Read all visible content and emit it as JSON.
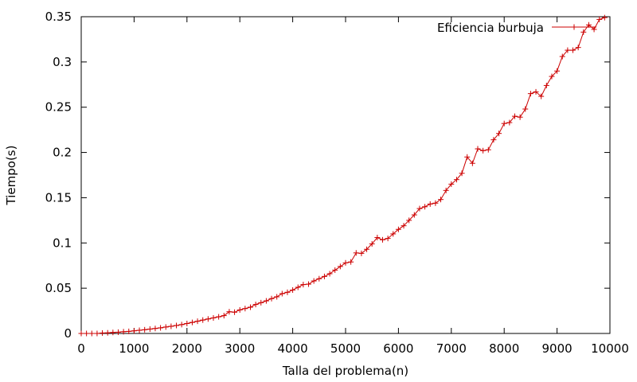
{
  "chart_data": {
    "type": "line",
    "title": "",
    "xlabel": "Talla del problema(n)",
    "ylabel": "Tiempo(s)",
    "xlim": [
      0,
      10000
    ],
    "ylim": [
      0,
      0.35
    ],
    "x_ticks": [
      0,
      1000,
      2000,
      3000,
      4000,
      5000,
      6000,
      7000,
      8000,
      9000,
      10000
    ],
    "y_ticks": [
      0,
      0.05,
      0.1,
      0.15,
      0.2,
      0.25,
      0.3,
      0.35
    ],
    "x_tick_labels": [
      "0",
      "1000",
      "2000",
      "3000",
      "4000",
      "5000",
      "6000",
      "7000",
      "8000",
      "9000",
      "10000"
    ],
    "y_tick_labels": [
      "0",
      "0.05",
      "0.1",
      "0.15",
      "0.2",
      "0.25",
      "0.3",
      "0.35"
    ],
    "grid": false,
    "legend_position": "top-right",
    "series_color": "#cc0000",
    "marker": "plus",
    "series": [
      {
        "name": "Eficiencia burbuja",
        "x": [
          0,
          100,
          200,
          300,
          400,
          500,
          600,
          700,
          800,
          900,
          1000,
          1100,
          1200,
          1300,
          1400,
          1500,
          1600,
          1700,
          1800,
          1900,
          2000,
          2100,
          2200,
          2300,
          2400,
          2500,
          2600,
          2700,
          2800,
          2900,
          3000,
          3100,
          3200,
          3300,
          3400,
          3500,
          3600,
          3700,
          3800,
          3900,
          4000,
          4100,
          4200,
          4300,
          4400,
          4500,
          4600,
          4700,
          4800,
          4900,
          5000,
          5100,
          5200,
          5300,
          5400,
          5500,
          5600,
          5700,
          5800,
          5900,
          6000,
          6100,
          6200,
          6300,
          6400,
          6500,
          6600,
          6700,
          6800,
          6900,
          7000,
          7100,
          7200,
          7300,
          7400,
          7500,
          7600,
          7700,
          7800,
          7900,
          8000,
          8100,
          8200,
          8300,
          8400,
          8500,
          8600,
          8700,
          8800,
          8900,
          9000,
          9100,
          9200,
          9300,
          9400,
          9500,
          9600,
          9700,
          9800,
          9900
        ],
        "values": [
          0,
          0,
          0,
          0,
          0.0005,
          0.0007,
          0.0011,
          0.0014,
          0.0019,
          0.0023,
          0.0029,
          0.0035,
          0.0041,
          0.0048,
          0.0055,
          0.0062,
          0.0071,
          0.0079,
          0.0088,
          0.0098,
          0.011,
          0.0122,
          0.0135,
          0.0148,
          0.016,
          0.0172,
          0.0184,
          0.0197,
          0.024,
          0.0235,
          0.026,
          0.0275,
          0.029,
          0.032,
          0.034,
          0.036,
          0.0385,
          0.0405,
          0.044,
          0.0455,
          0.048,
          0.051,
          0.054,
          0.0545,
          0.058,
          0.0605,
          0.063,
          0.066,
          0.07,
          0.074,
          0.078,
          0.079,
          0.089,
          0.0885,
          0.093,
          0.099,
          0.106,
          0.1035,
          0.105,
          0.11,
          0.115,
          0.119,
          0.125,
          0.131,
          0.138,
          0.14,
          0.143,
          0.144,
          0.148,
          0.158,
          0.165,
          0.17,
          0.177,
          0.195,
          0.188,
          0.204,
          0.202,
          0.203,
          0.214,
          0.221,
          0.232,
          0.233,
          0.24,
          0.239,
          0.248,
          0.265,
          0.267,
          0.262,
          0.274,
          0.284,
          0.29,
          0.306,
          0.313,
          0.313,
          0.316,
          0.333,
          0.341,
          0.336,
          0.347,
          0.349
        ]
      }
    ]
  }
}
